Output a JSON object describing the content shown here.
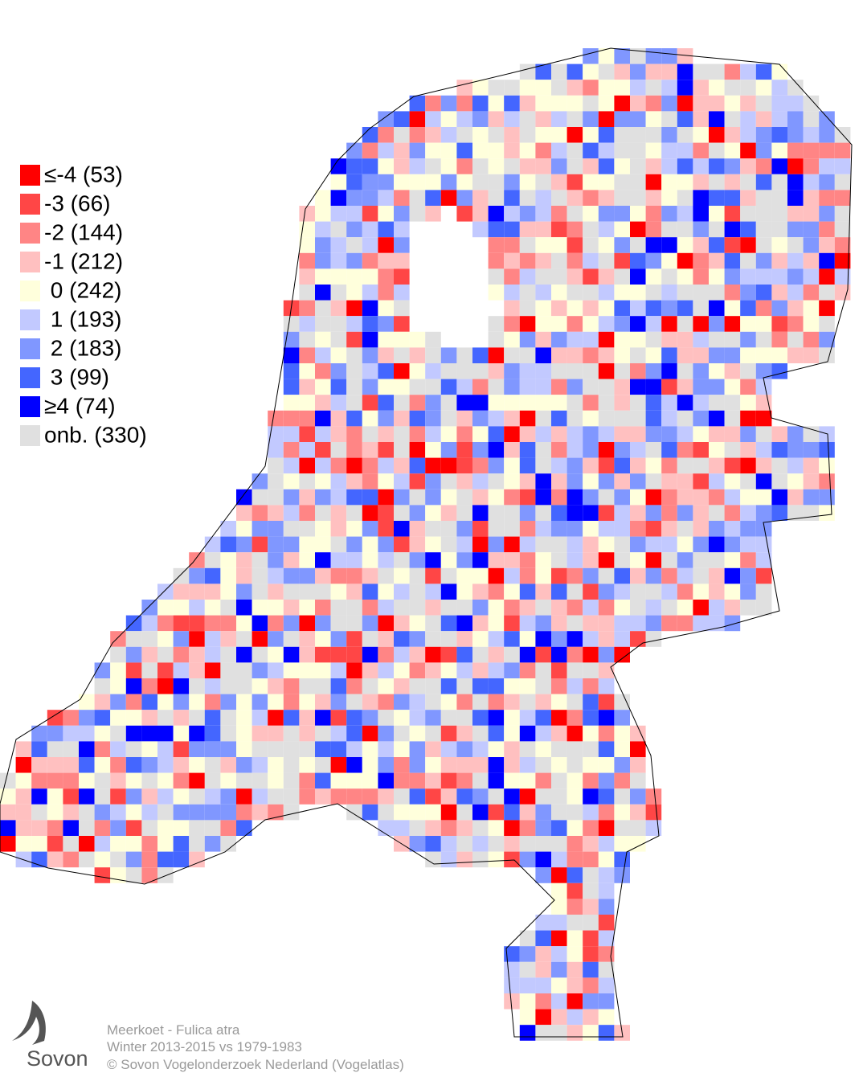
{
  "map": {
    "legend": [
      {
        "label": "≤-4 (53)",
        "color": "#ff0000"
      },
      {
        "label": "-3 (66)",
        "color": "#ff4646"
      },
      {
        "label": "-2 (144)",
        "color": "#ff8585"
      },
      {
        "label": "-1 (212)",
        "color": "#ffc0c0"
      },
      {
        "label": " 0 (242)",
        "color": "#ffffdc"
      },
      {
        "label": " 1 (193)",
        "color": "#c2c9ff"
      },
      {
        "label": " 2 (183)",
        "color": "#8097ff"
      },
      {
        "label": " 3 (99)",
        "color": "#4466ff"
      },
      {
        "label": "≥4 (74)",
        "color": "#0000ff"
      },
      {
        "label": "onb. (330)",
        "color": "#e0e0e0"
      }
    ],
    "caption": [
      "Meerkoet - Fulica atra",
      "Winter 2013-2015 vs 1979-1983",
      "© Sovon Vogelonderzoek Nederland (Vogelatlas)"
    ],
    "logo": "Sovon"
  }
}
